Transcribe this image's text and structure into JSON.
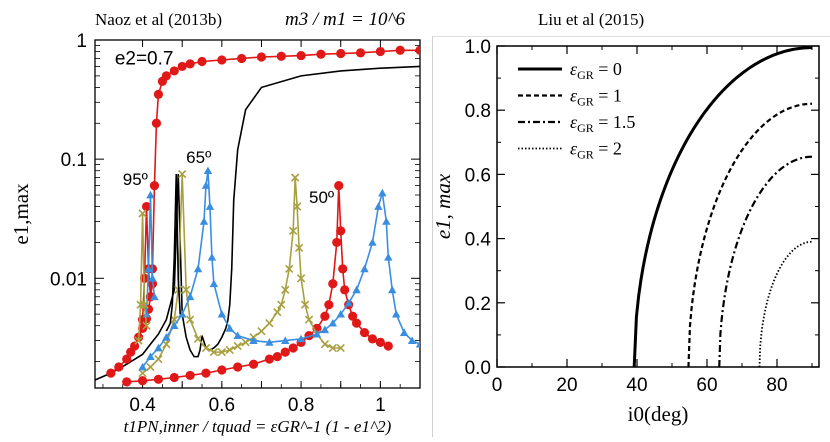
{
  "chart_data": [
    {
      "type": "line",
      "yscale": "log",
      "title": "Naoz et al (2013b)",
      "corner_label": "m3 / m1 = 10^6",
      "xlabel": "t1PN,inner / tquad = εGR^-1 (1 - e1^2)",
      "ylabel": "e1,max",
      "xlim": [
        0.28,
        1.1
      ],
      "ylim": [
        0.0012,
        1.0
      ],
      "xticks": [
        0.4,
        0.5,
        0.6,
        0.7,
        0.8,
        0.9,
        1.0
      ],
      "xtick_labels": [
        "0.4",
        "0.6",
        "0.8",
        "1"
      ],
      "ytick_labels": [
        "0.01",
        "0.1",
        "1"
      ],
      "annotations": [
        {
          "text": "e2=0.7",
          "x": 0.33,
          "y": 0.7
        },
        {
          "text": "95º",
          "x": 0.35,
          "y": 0.068
        },
        {
          "text": "65º",
          "x": 0.51,
          "y": 0.104
        },
        {
          "text": "50º",
          "x": 0.82,
          "y": 0.048
        }
      ],
      "series": [
        {
          "name": "black lower",
          "color": "#000000",
          "marker": "none",
          "x": [
            0.28,
            0.32,
            0.36,
            0.4,
            0.42,
            0.44,
            0.46,
            0.48,
            0.49,
            0.5,
            0.51,
            0.52,
            0.53,
            0.54,
            0.545,
            0.55,
            0.56,
            0.57,
            0.58,
            0.59,
            0.6,
            0.61,
            0.615,
            0.62,
            0.625,
            0.63,
            0.64,
            0.66,
            0.7,
            0.8,
            0.9,
            1.0,
            1.1
          ],
          "y": [
            0.0014,
            0.0016,
            0.0019,
            0.0023,
            0.0028,
            0.0034,
            0.0045,
            0.008,
            0.075,
            0.005,
            0.0032,
            0.0025,
            0.0022,
            0.0022,
            0.0025,
            0.0033,
            0.0026,
            0.0025,
            0.0026,
            0.0028,
            0.0032,
            0.0038,
            0.0044,
            0.006,
            0.012,
            0.045,
            0.12,
            0.26,
            0.4,
            0.5,
            0.55,
            0.58,
            0.6
          ]
        },
        {
          "name": "red upper",
          "color": "#e01818",
          "marker": "circle",
          "x": [
            0.32,
            0.34,
            0.36,
            0.37,
            0.38,
            0.39,
            0.4,
            0.41,
            0.415,
            0.42,
            0.425,
            0.43,
            0.435,
            0.44,
            0.45,
            0.46,
            0.48,
            0.5,
            0.52,
            0.55,
            0.6,
            0.65,
            0.7,
            0.75,
            0.8,
            0.85,
            0.9,
            0.95,
            1.0,
            1.05,
            1.1
          ],
          "y": [
            0.0016,
            0.0018,
            0.0021,
            0.0024,
            0.0027,
            0.0032,
            0.0038,
            0.0046,
            0.0055,
            0.007,
            0.012,
            0.06,
            0.2,
            0.35,
            0.45,
            0.5,
            0.55,
            0.6,
            0.63,
            0.66,
            0.68,
            0.7,
            0.72,
            0.73,
            0.74,
            0.76,
            0.77,
            0.78,
            0.8,
            0.82,
            0.82
          ]
        },
        {
          "name": "red lower",
          "color": "#e01818",
          "marker": "circle",
          "x": [
            0.36,
            0.4,
            0.44,
            0.48,
            0.52,
            0.56,
            0.6,
            0.64,
            0.68,
            0.72,
            0.74,
            0.76,
            0.78,
            0.8,
            0.82,
            0.84,
            0.86,
            0.87,
            0.88,
            0.89,
            0.895,
            0.9,
            0.905,
            0.91,
            0.92,
            0.93,
            0.94,
            0.96,
            0.98,
            1.0,
            1.02
          ],
          "y": [
            0.00135,
            0.00138,
            0.00142,
            0.00147,
            0.00153,
            0.0016,
            0.0017,
            0.0018,
            0.0019,
            0.0021,
            0.0022,
            0.0024,
            0.0026,
            0.0029,
            0.0033,
            0.0038,
            0.0048,
            0.006,
            0.009,
            0.02,
            0.06,
            0.025,
            0.012,
            0.008,
            0.006,
            0.0048,
            0.0042,
            0.0035,
            0.0031,
            0.0029,
            0.0027
          ]
        },
        {
          "name": "olive",
          "color": "#a8a040",
          "marker": "x",
          "x": [
            0.4,
            0.42,
            0.44,
            0.46,
            0.48,
            0.49,
            0.5,
            0.51,
            0.52,
            0.54,
            0.56,
            0.58,
            0.6,
            0.62,
            0.64,
            0.66,
            0.68,
            0.7,
            0.72,
            0.74,
            0.75,
            0.76,
            0.77,
            0.78,
            0.785,
            0.79,
            0.795,
            0.8,
            0.81,
            0.82,
            0.84,
            0.86,
            0.88,
            0.9
          ],
          "y": [
            0.0016,
            0.0018,
            0.0021,
            0.0028,
            0.0045,
            0.008,
            0.075,
            0.008,
            0.0045,
            0.0031,
            0.0026,
            0.0024,
            0.0024,
            0.0025,
            0.0027,
            0.0029,
            0.0032,
            0.0036,
            0.0042,
            0.0052,
            0.006,
            0.008,
            0.012,
            0.025,
            0.07,
            0.04,
            0.018,
            0.01,
            0.006,
            0.0045,
            0.0034,
            0.0028,
            0.0026,
            0.0026
          ]
        },
        {
          "name": "blue",
          "color": "#3a8ee0",
          "marker": "triangle",
          "x": [
            0.4,
            0.42,
            0.44,
            0.46,
            0.48,
            0.5,
            0.52,
            0.54,
            0.555,
            0.56,
            0.565,
            0.57,
            0.575,
            0.58,
            0.6,
            0.62,
            0.64,
            0.68,
            0.72,
            0.76,
            0.8,
            0.84,
            0.86,
            0.88,
            0.9,
            0.92,
            0.94,
            0.96,
            0.98,
            0.995,
            1.005,
            1.015,
            1.02,
            1.03,
            1.04,
            1.06,
            1.08,
            1.1
          ],
          "y": [
            0.0018,
            0.0022,
            0.0026,
            0.0032,
            0.004,
            0.005,
            0.007,
            0.012,
            0.03,
            0.06,
            0.08,
            0.04,
            0.015,
            0.009,
            0.005,
            0.0038,
            0.0033,
            0.003,
            0.0029,
            0.003,
            0.0031,
            0.0034,
            0.0037,
            0.0042,
            0.005,
            0.0062,
            0.008,
            0.012,
            0.02,
            0.04,
            0.052,
            0.03,
            0.015,
            0.008,
            0.005,
            0.0035,
            0.003,
            0.0028
          ]
        },
        {
          "name": "black spike",
          "color": "#000000",
          "marker": "none",
          "x": [
            0.46,
            0.47,
            0.475,
            0.48,
            0.485,
            0.49,
            0.495
          ],
          "y": [
            0.0036,
            0.0042,
            0.006,
            0.015,
            0.075,
            0.01,
            0.005
          ]
        },
        {
          "name": "red 95 spikes",
          "color": "#e01818",
          "marker": "circle",
          "x": [
            0.4,
            0.405,
            0.41,
            0.415,
            0.42,
            0.425
          ],
          "y": [
            0.0045,
            0.01,
            0.04,
            0.012,
            0.007,
            0.009
          ]
        },
        {
          "name": "blue 95 spike",
          "color": "#3a8ee0",
          "marker": "triangle",
          "x": [
            0.41,
            0.415,
            0.42,
            0.425,
            0.43
          ],
          "y": [
            0.005,
            0.012,
            0.05,
            0.01,
            0.007
          ]
        },
        {
          "name": "olive 95 spike",
          "color": "#a8a040",
          "marker": "x",
          "x": [
            0.39,
            0.395,
            0.4,
            0.405,
            0.41
          ],
          "y": [
            0.003,
            0.006,
            0.035,
            0.006,
            0.004
          ]
        }
      ]
    },
    {
      "type": "line",
      "title": "Liu et al (2015)",
      "xlabel": "i0(deg)",
      "ylabel": "e1, max",
      "xlim": [
        0,
        92
      ],
      "ylim": [
        0,
        1.0
      ],
      "xticks": [
        0,
        20,
        40,
        60,
        80
      ],
      "yticks": [
        0.0,
        0.2,
        0.4,
        0.6,
        0.8,
        1.0
      ],
      "xtick_labels": [
        "0",
        "20",
        "40",
        "60",
        "80"
      ],
      "ytick_labels": [
        "0.0",
        "0.2",
        "0.4",
        "0.6",
        "0.8",
        "1.0"
      ],
      "legend_location": "top-left",
      "series": [
        {
          "name": "εGR = 0",
          "label_main": "ε",
          "label_sub": "GR",
          "label_rest": " = 0",
          "style": "solid",
          "start_deg": 39.2,
          "emax": 0.995
        },
        {
          "name": "εGR = 1",
          "label_main": "ε",
          "label_sub": "GR",
          "label_rest": " = 1",
          "style": "dashed",
          "start_deg": 54.7,
          "emax": 0.82
        },
        {
          "name": "εGR = 1.5",
          "label_main": "ε",
          "label_sub": "GR",
          "label_rest": " = 1.5",
          "style": "dashdot",
          "start_deg": 63.5,
          "emax": 0.655
        },
        {
          "name": "εGR = 2",
          "label_main": "ε",
          "label_sub": "GR",
          "label_rest": " = 2",
          "style": "dotted",
          "start_deg": 75.0,
          "emax": 0.39
        }
      ]
    }
  ]
}
